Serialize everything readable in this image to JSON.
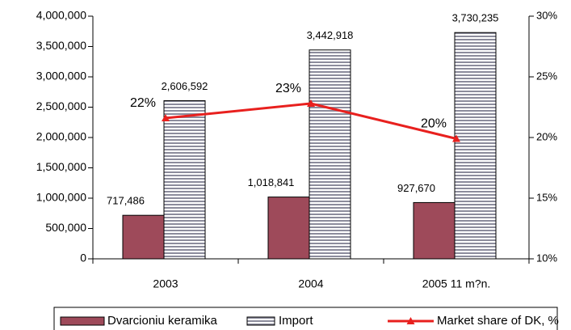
{
  "chart_data": {
    "type": "bar",
    "categories": [
      "2003",
      "2004",
      "2005 11 m?n."
    ],
    "series": [
      {
        "name": "Dvarcioniu keramika",
        "color": "#9e4a5a",
        "values": [
          717486,
          1018841,
          927670
        ],
        "value_labels": [
          "717,486",
          "1,018,841",
          "927,670"
        ]
      },
      {
        "name": "Import",
        "color": "#8c8c9c",
        "values": [
          2606592,
          3442918,
          3730235
        ],
        "value_labels": [
          "2,606,592",
          "3,442,918",
          "3,730,235"
        ]
      },
      {
        "name": "Market share of DK, %",
        "color": "#e8201e",
        "type": "line",
        "axis": "y2",
        "values": [
          21.6,
          22.8,
          19.9
        ],
        "value_labels": [
          "22%",
          "23%",
          "20%"
        ]
      }
    ],
    "ylim": [
      0,
      4000000
    ],
    "yticks": [
      0,
      {
        "value": 500000,
        "label": "500,000"
      },
      {
        "value": 1000000,
        "label": "1,000,000"
      },
      {
        "value": 1500000,
        "label": "1,500,000"
      },
      {
        "value": 2000000,
        "label": "2,000,000"
      },
      {
        "value": 2500000,
        "label": "2,500,000"
      },
      {
        "value": 3000000,
        "label": "3,000,000"
      },
      {
        "value": 3500000,
        "label": "3,500,000"
      },
      {
        "value": 4000000,
        "label": "4,000,000"
      }
    ],
    "y2lim": [
      10,
      30
    ],
    "y2ticks": [
      {
        "value": 10,
        "label": "10%"
      },
      {
        "value": 15,
        "label": "15%"
      },
      {
        "value": 20,
        "label": "20%"
      },
      {
        "value": 25,
        "label": "25%"
      },
      {
        "value": 30,
        "label": "30%"
      }
    ],
    "legend": "bottom"
  }
}
